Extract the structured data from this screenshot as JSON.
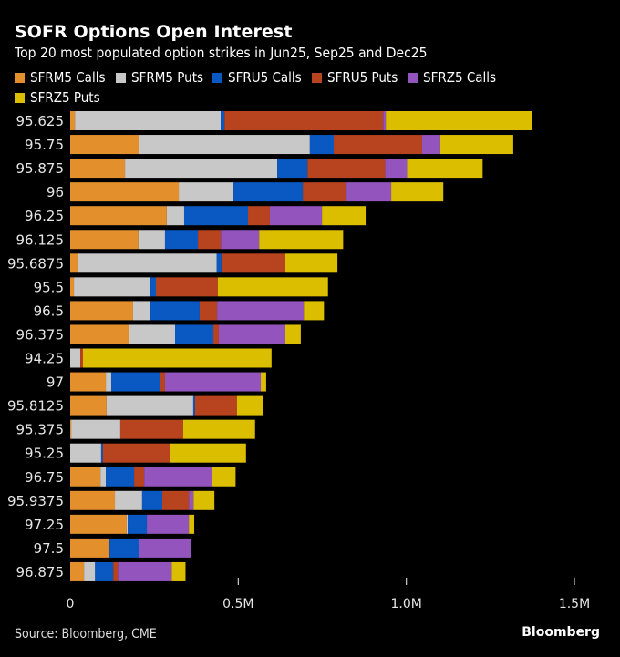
{
  "header": {
    "title": "SOFR Options Open Interest",
    "subtitle": "Top 20 most populated option strikes in Jun25, Sep25 and Dec25"
  },
  "footer": {
    "source": "Source: Bloomberg, CME",
    "brand": "Bloomberg"
  },
  "chart_data": {
    "type": "bar",
    "orientation": "horizontal",
    "stacked": true,
    "title": "SOFR Options Open Interest",
    "subtitle": "Top 20 most populated option strikes in Jun25, Sep25 and Dec25",
    "xlabel": "",
    "ylabel": "",
    "xlim": [
      0,
      1500000
    ],
    "xticks": [
      0,
      500000,
      1000000,
      1500000
    ],
    "xtick_labels": [
      "0",
      "0.5M",
      "1.0M",
      "1.5M"
    ],
    "grid": false,
    "legend_position": "top-left",
    "categories": [
      "95.625",
      "95.75",
      "95.875",
      "96",
      "96.25",
      "96.125",
      "95.6875",
      "95.5",
      "96.5",
      "96.375",
      "94.25",
      "97",
      "95.8125",
      "95.375",
      "95.25",
      "96.75",
      "95.9375",
      "97.25",
      "97.5",
      "96.875"
    ],
    "series": [
      {
        "name": "SFRM5 Calls",
        "color": "#e38f2b",
        "values": [
          14000,
          206000,
          163000,
          323000,
          287000,
          203000,
          24000,
          11000,
          187000,
          174000,
          0,
          106000,
          108000,
          3000,
          0,
          90000,
          133000,
          168000,
          117000,
          41000
        ]
      },
      {
        "name": "SFRM5 Puts",
        "color": "#c8c8c8",
        "values": [
          434000,
          507000,
          453000,
          163000,
          52000,
          79000,
          412000,
          228000,
          52000,
          138000,
          30000,
          16000,
          258000,
          146000,
          92000,
          16000,
          81000,
          3000,
          0,
          33000
        ]
      },
      {
        "name": "SFRU5 Calls",
        "color": "#0a58c2",
        "values": [
          11000,
          71000,
          90000,
          206000,
          190000,
          98000,
          14000,
          16000,
          146000,
          114000,
          0,
          146000,
          5000,
          0,
          5000,
          84000,
          60000,
          57000,
          87000,
          54000
        ]
      },
      {
        "name": "SFRU5 Puts",
        "color": "#b8431f",
        "values": [
          472000,
          263000,
          231000,
          130000,
          65000,
          68000,
          190000,
          184000,
          52000,
          16000,
          8000,
          14000,
          125000,
          187000,
          201000,
          30000,
          79000,
          0,
          0,
          14000
        ]
      },
      {
        "name": "SFRZ5 Calls",
        "color": "#9354bd",
        "values": [
          8000,
          54000,
          65000,
          133000,
          155000,
          114000,
          0,
          0,
          258000,
          198000,
          0,
          285000,
          0,
          0,
          0,
          201000,
          14000,
          125000,
          155000,
          160000
        ]
      },
      {
        "name": "SFRZ5 Puts",
        "color": "#dbbe00",
        "values": [
          434000,
          217000,
          225000,
          155000,
          130000,
          250000,
          155000,
          328000,
          60000,
          46000,
          561000,
          16000,
          79000,
          214000,
          225000,
          71000,
          62000,
          16000,
          0,
          41000
        ]
      }
    ]
  }
}
